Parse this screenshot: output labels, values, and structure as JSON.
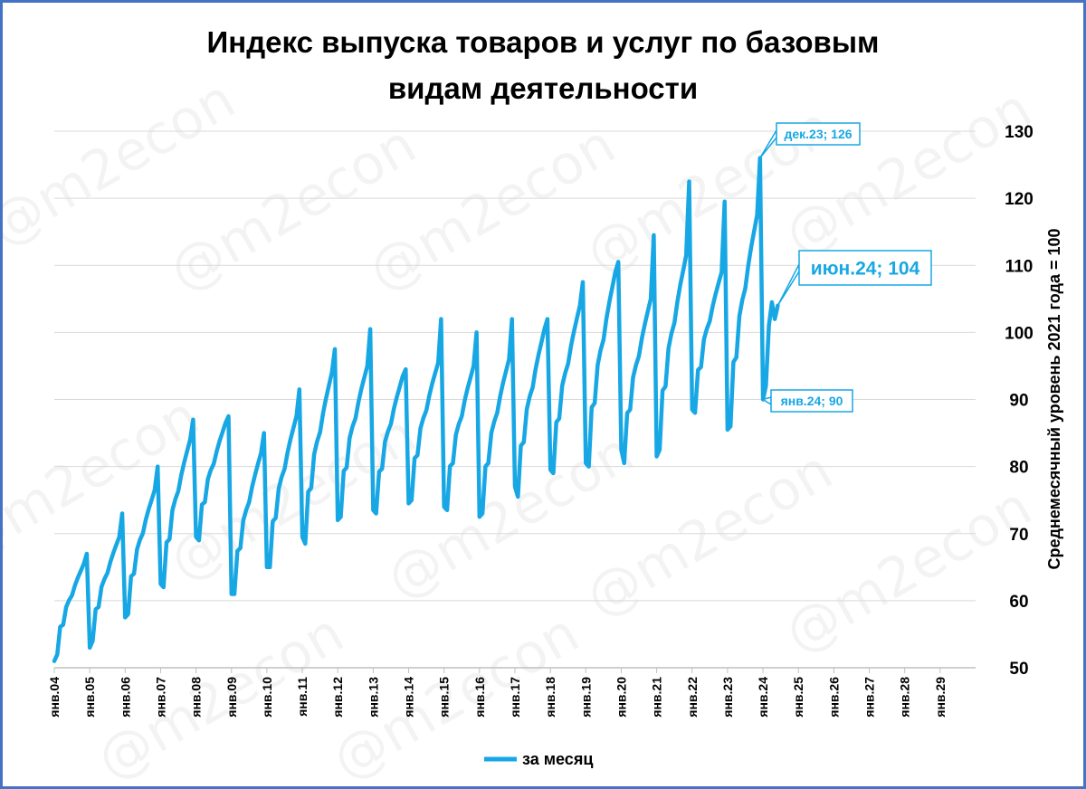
{
  "chart_data": {
    "type": "line",
    "title_lines": [
      "Индекс выпуска товаров и услуг по базовым",
      "видам деятельности"
    ],
    "ylabel": "Среднемесячный уровень 2021 года  =  100",
    "ylim": [
      50,
      130
    ],
    "yticks": [
      50,
      60,
      70,
      80,
      90,
      100,
      110,
      120,
      130
    ],
    "grid": true,
    "legend_position": "bottom-center",
    "watermark": "@m2econ",
    "x_tick_labels": [
      "янв.04",
      "янв.05",
      "янв.06",
      "янв.07",
      "янв.08",
      "янв.09",
      "янв.10",
      "янв.11",
      "янв.12",
      "янв.13",
      "янв.14",
      "янв.15",
      "янв.16",
      "янв.17",
      "янв.18",
      "янв.19",
      "янв.20",
      "янв.21",
      "янв.22",
      "янв.23",
      "янв.24",
      "янв.25",
      "янв.26",
      "янв.27",
      "янв.28",
      "янв.29"
    ],
    "x_range_months": [
      "2004-01",
      "2030-01"
    ],
    "line_color": "#17a7e4",
    "series": [
      {
        "name": "за месяц",
        "color": "#17a7e4",
        "start": "2004-01",
        "frequency": "monthly",
        "year_params": [
          [
            51.0,
            52.0,
            65.5,
            67.0
          ],
          [
            53.0,
            54.0,
            69.5,
            73.0
          ],
          [
            57.5,
            58.0,
            76.5,
            80.0
          ],
          [
            62.5,
            62.0,
            84.0,
            87.0
          ],
          [
            69.5,
            69.0,
            86.5,
            87.5
          ],
          [
            61.0,
            61.0,
            82.0,
            85.0
          ],
          [
            65.0,
            65.0,
            87.5,
            91.5
          ],
          [
            69.5,
            68.5,
            94.0,
            97.5
          ],
          [
            72.0,
            72.5,
            95.0,
            100.5
          ],
          [
            73.5,
            73.0,
            93.5,
            94.5
          ],
          [
            74.5,
            75.0,
            95.5,
            102.0
          ],
          [
            74.0,
            73.5,
            95.0,
            100.0
          ],
          [
            72.5,
            73.0,
            96.0,
            102.0
          ],
          [
            77.0,
            75.5,
            100.5,
            102.0
          ],
          [
            79.5,
            79.0,
            104.0,
            107.5
          ],
          [
            80.5,
            80.0,
            109.0,
            110.5
          ],
          [
            82.5,
            80.5,
            105.0,
            114.5
          ],
          [
            81.5,
            82.5,
            111.5,
            122.5
          ],
          [
            88.5,
            88.0,
            109.0,
            119.5
          ],
          [
            85.5,
            86.0,
            117.5,
            126.0
          ]
        ],
        "values_2024": [
          90,
          92,
          101,
          104.5,
          102,
          104
        ]
      }
    ],
    "annotations": [
      {
        "month": "2023-12",
        "value": 126,
        "text": "дек.23; 126",
        "size": "small"
      },
      {
        "month": "2024-06",
        "value": 104,
        "text": "июн.24; 104",
        "size": "large"
      },
      {
        "month": "2024-01",
        "value": 90,
        "text": "янв.24; 90",
        "size": "small"
      }
    ]
  }
}
